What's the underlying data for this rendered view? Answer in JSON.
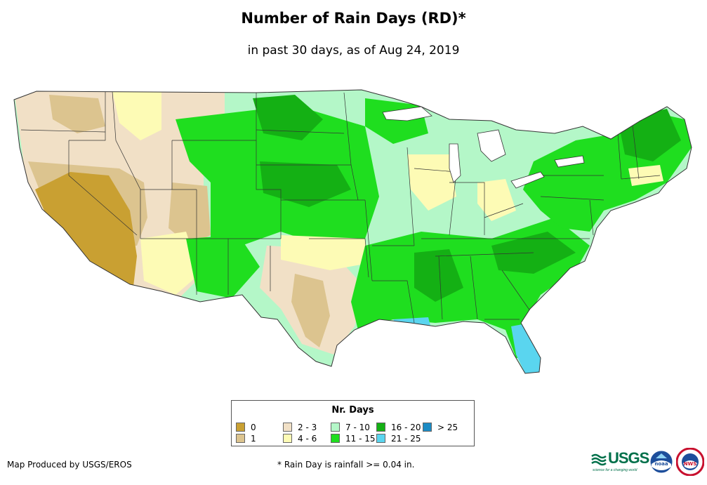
{
  "title": "Number of Rain Days (RD)*",
  "subtitle": "in past 30 days, as of Aug 24, 2019",
  "legend": {
    "title": "Nr. Days",
    "items": [
      {
        "label": "0",
        "color": "#c9a032"
      },
      {
        "label": "1",
        "color": "#dcc48f"
      },
      {
        "label": "2 - 3",
        "color": "#f1e0c6"
      },
      {
        "label": "4 - 6",
        "color": "#fdfbb5"
      },
      {
        "label": "7 - 10",
        "color": "#b4f7c8"
      },
      {
        "label": "11 - 15",
        "color": "#1fde1f"
      },
      {
        "label": "16 - 20",
        "color": "#14b014"
      },
      {
        "label": "21 - 25",
        "color": "#5ad5ef"
      },
      {
        "label": "> 25",
        "color": "#1b8bc4"
      }
    ]
  },
  "credit": "Map Produced by USGS/EROS",
  "footnote": "* Rain Day is rainfall >= 0.04 in.",
  "logos": {
    "usgs_text": "USGS",
    "usgs_tagline": "science for a changing world",
    "noaa_text": "noaa",
    "nws_text": "NWS"
  }
}
